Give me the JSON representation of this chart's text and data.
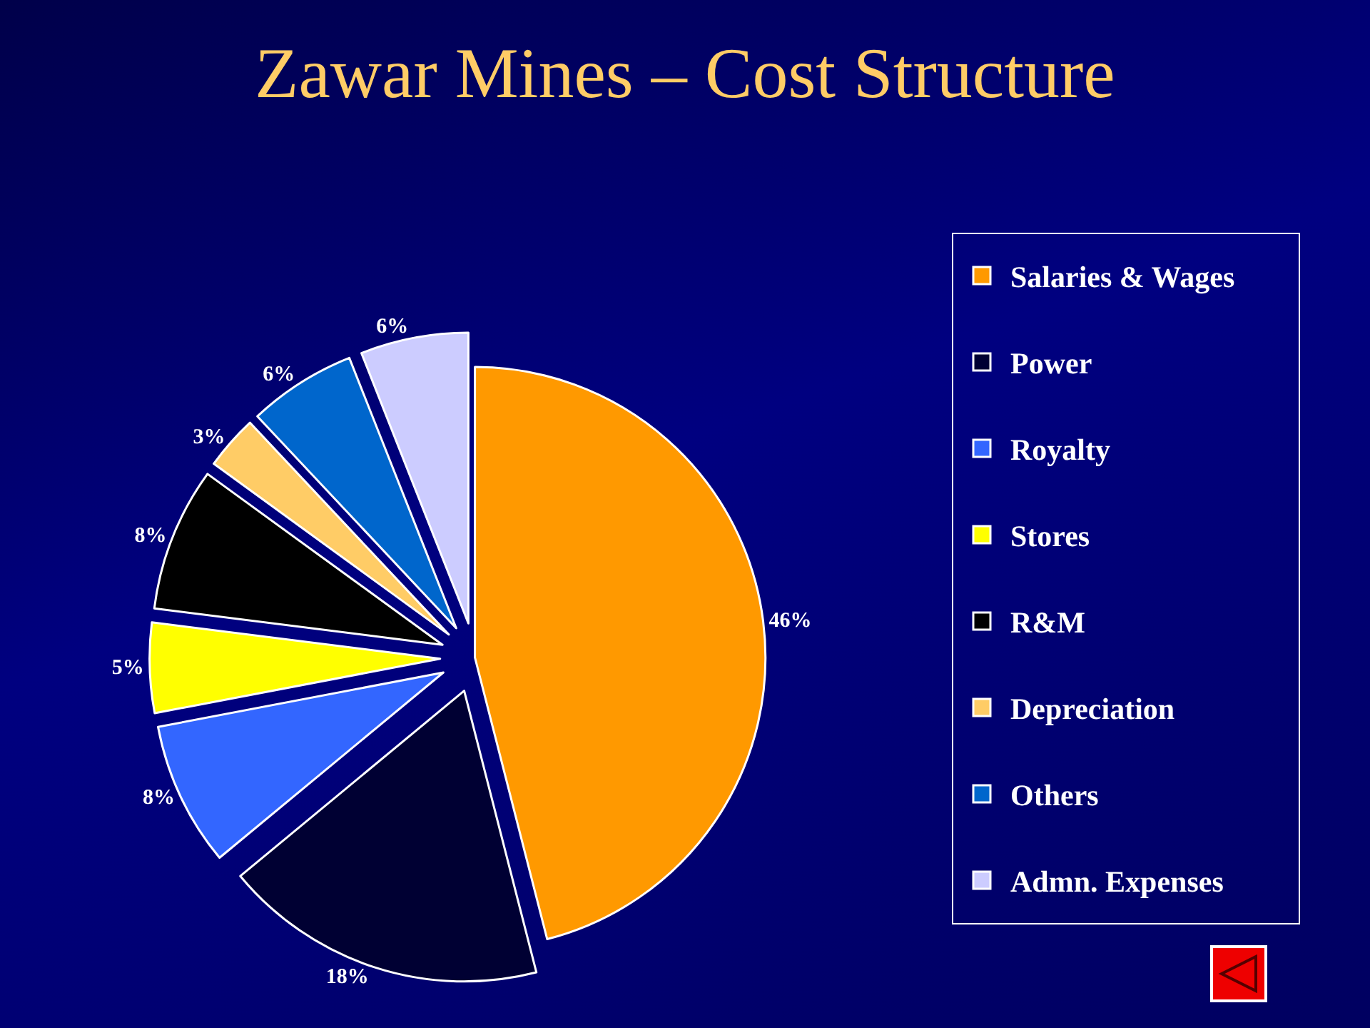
{
  "chart_data": {
    "type": "pie",
    "title": "Zawar Mines – Cost Structure",
    "categories": [
      "Salaries & Wages",
      "Power",
      "Royalty",
      "Stores",
      "R&M",
      "Depreciation",
      "Others",
      "Admn. Expenses"
    ],
    "values": [
      46,
      18,
      8,
      5,
      8,
      3,
      6,
      6
    ],
    "value_labels": [
      "46%",
      "18%",
      "8%",
      "5%",
      "8%",
      "3%",
      "6%",
      "6%"
    ],
    "colors": [
      "#ff9900",
      "#000033",
      "#3366ff",
      "#ffff00",
      "#000000",
      "#ffcc66",
      "#0066cc",
      "#ccccff"
    ],
    "legend": "right"
  }
}
